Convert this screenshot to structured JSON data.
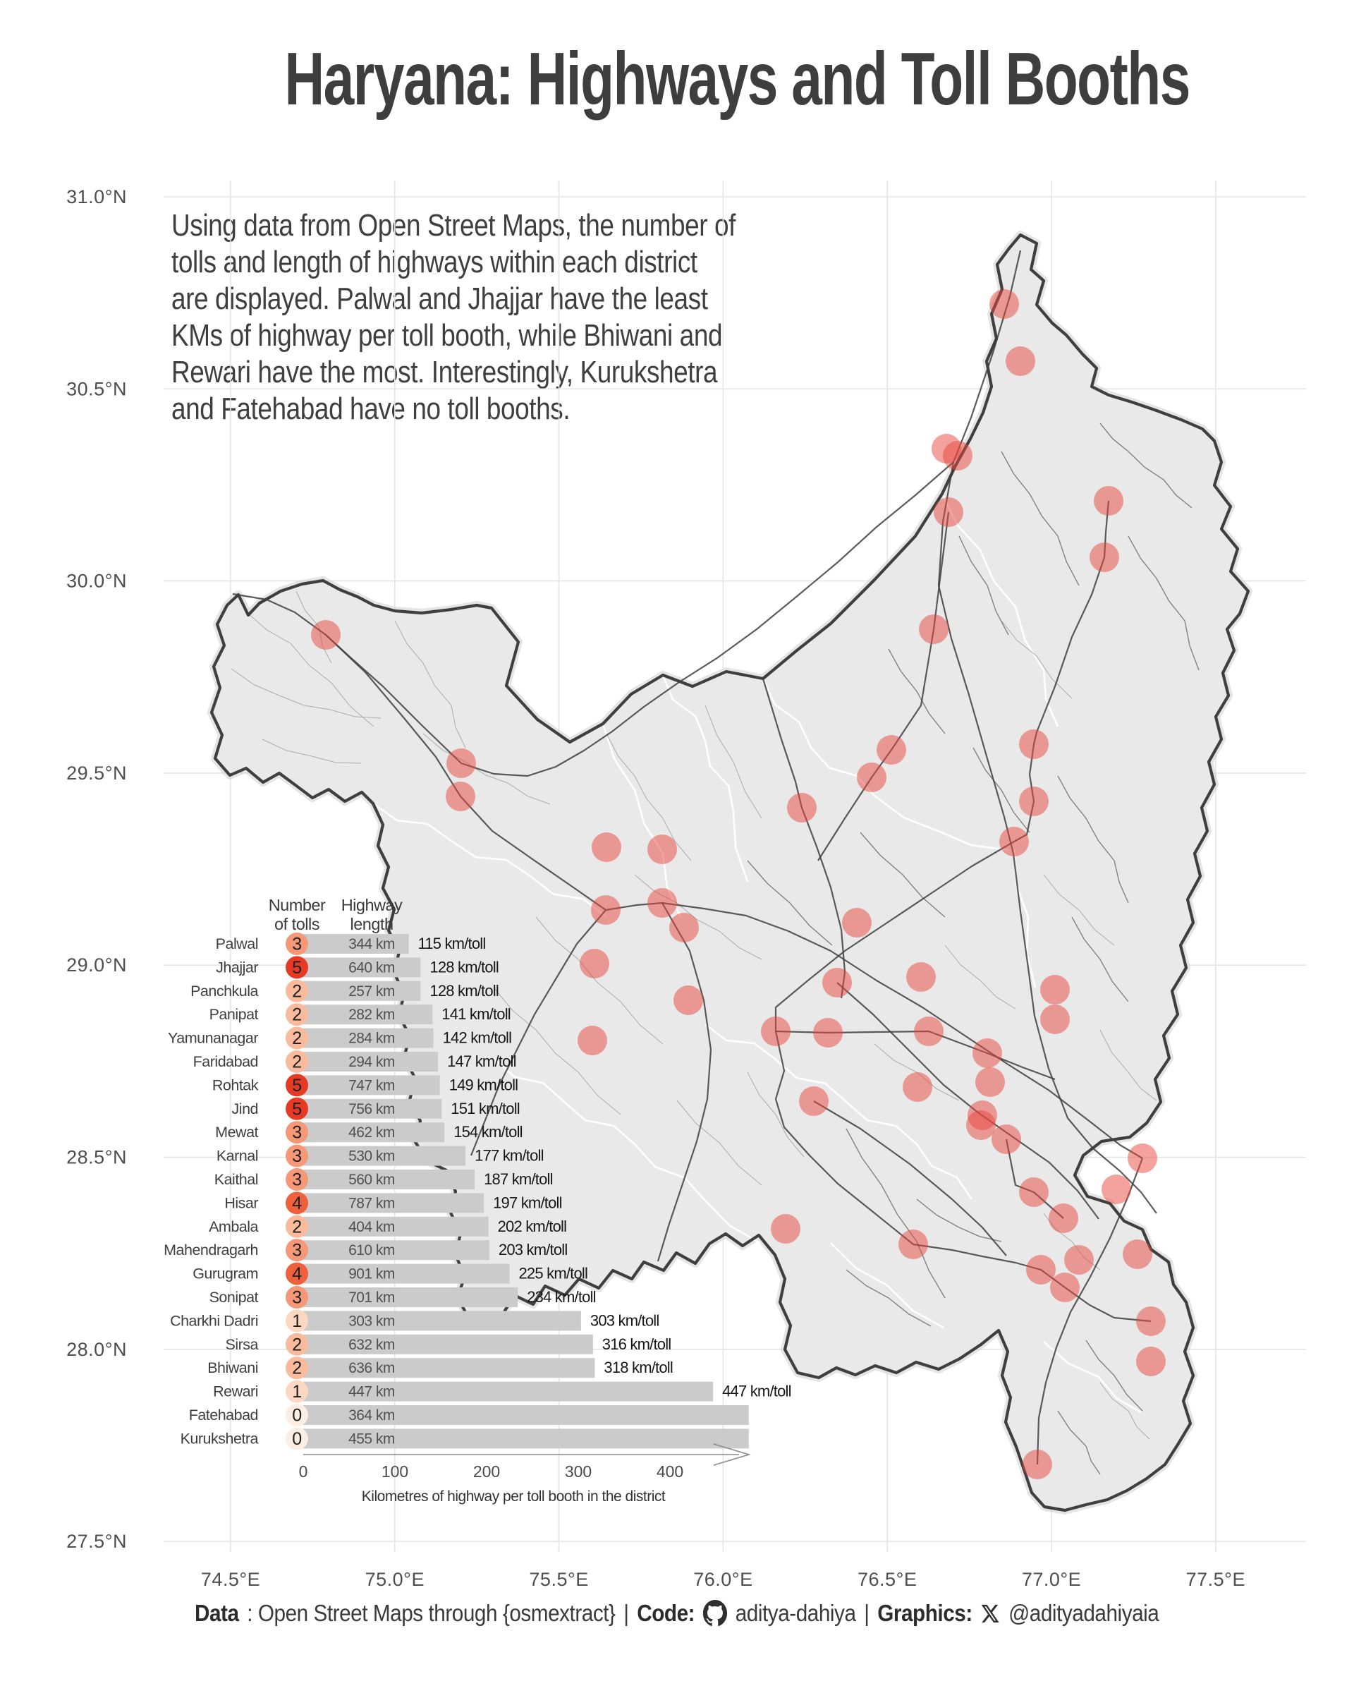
{
  "header": {
    "title": "Haryana: Highways and Toll Booths"
  },
  "description": {
    "lines": [
      "Using data from Open Street Maps, the number of",
      "tolls and length of highways within each district",
      "are displayed. Palwal and Jhajjar have the least",
      "KMs of highway per toll booth, while Bhiwani and",
      "Rewari have the most. Interestingly, Kurukshetra",
      "and Fatehabad have no toll booths."
    ]
  },
  "axes": {
    "lat_labels": [
      "31.0°N",
      "30.5°N",
      "30.0°N",
      "29.5°N",
      "29.0°N",
      "28.5°N",
      "28.0°N",
      "27.5°N"
    ],
    "lon_labels": [
      "74.5°E",
      "75.0°E",
      "75.5°E",
      "76.0°E",
      "76.5°E",
      "77.0°E",
      "77.5°E"
    ]
  },
  "chart_data": {
    "type": "bar",
    "col_headers": {
      "tolls": [
        "Number",
        "of tolls"
      ],
      "length": [
        "Highway",
        "length"
      ]
    },
    "xlabel": "Kilometres of highway per toll booth in the district",
    "x_ticks": [
      0,
      100,
      200,
      300,
      400
    ],
    "bar_unit": "km",
    "value_unit": "km/toll",
    "bar_color": "#cbcbcb",
    "toll_colors": {
      "0": "#fdeee4",
      "1": "#fbd8c2",
      "2": "#f9bb9b",
      "3": "#f59878",
      "4": "#ef603c",
      "5": "#e73a24"
    },
    "rows": [
      {
        "district": "Palwal",
        "tolls": 3,
        "highway_km": 344,
        "km_per_toll": 115
      },
      {
        "district": "Jhajjar",
        "tolls": 5,
        "highway_km": 640,
        "km_per_toll": 128
      },
      {
        "district": "Panchkula",
        "tolls": 2,
        "highway_km": 257,
        "km_per_toll": 128
      },
      {
        "district": "Panipat",
        "tolls": 2,
        "highway_km": 282,
        "km_per_toll": 141
      },
      {
        "district": "Yamunanagar",
        "tolls": 2,
        "highway_km": 284,
        "km_per_toll": 142
      },
      {
        "district": "Faridabad",
        "tolls": 2,
        "highway_km": 294,
        "km_per_toll": 147
      },
      {
        "district": "Rohtak",
        "tolls": 5,
        "highway_km": 747,
        "km_per_toll": 149
      },
      {
        "district": "Jind",
        "tolls": 5,
        "highway_km": 756,
        "km_per_toll": 151
      },
      {
        "district": "Mewat",
        "tolls": 3,
        "highway_km": 462,
        "km_per_toll": 154
      },
      {
        "district": "Karnal",
        "tolls": 3,
        "highway_km": 530,
        "km_per_toll": 177
      },
      {
        "district": "Kaithal",
        "tolls": 3,
        "highway_km": 560,
        "km_per_toll": 187
      },
      {
        "district": "Hisar",
        "tolls": 4,
        "highway_km": 787,
        "km_per_toll": 197
      },
      {
        "district": "Ambala",
        "tolls": 2,
        "highway_km": 404,
        "km_per_toll": 202
      },
      {
        "district": "Mahendragarh",
        "tolls": 3,
        "highway_km": 610,
        "km_per_toll": 203
      },
      {
        "district": "Gurugram",
        "tolls": 4,
        "highway_km": 901,
        "km_per_toll": 225
      },
      {
        "district": "Sonipat",
        "tolls": 3,
        "highway_km": 701,
        "km_per_toll": 234
      },
      {
        "district": "Charkhi Dadri",
        "tolls": 1,
        "highway_km": 303,
        "km_per_toll": 303
      },
      {
        "district": "Sirsa",
        "tolls": 2,
        "highway_km": 632,
        "km_per_toll": 316
      },
      {
        "district": "Bhiwani",
        "tolls": 2,
        "highway_km": 636,
        "km_per_toll": 318
      },
      {
        "district": "Rewari",
        "tolls": 1,
        "highway_km": 447,
        "km_per_toll": 447
      },
      {
        "district": "Fatehabad",
        "tolls": 0,
        "highway_km": 364,
        "km_per_toll": null
      },
      {
        "district": "Kurukshetra",
        "tolls": 0,
        "highway_km": 455,
        "km_per_toll": null
      }
    ]
  },
  "map": {
    "region": "Haryana",
    "toll_dot_color": "#e8453c",
    "toll_booths": [
      [
        1424,
        431
      ],
      [
        1447,
        512
      ],
      [
        1342,
        636
      ],
      [
        1358,
        646
      ],
      [
        1345,
        726
      ],
      [
        1572,
        710
      ],
      [
        1566,
        790
      ],
      [
        462,
        900
      ],
      [
        1324,
        892
      ],
      [
        1264,
        1063
      ],
      [
        1236,
        1102
      ],
      [
        1466,
        1055
      ],
      [
        1137,
        1145
      ],
      [
        1466,
        1136
      ],
      [
        654,
        1082
      ],
      [
        653,
        1129
      ],
      [
        860,
        1201
      ],
      [
        939,
        1204
      ],
      [
        1438,
        1193
      ],
      [
        970,
        1315
      ],
      [
        1215,
        1308
      ],
      [
        843,
        1366
      ],
      [
        1187,
        1393
      ],
      [
        1306,
        1385
      ],
      [
        859,
        1290
      ],
      [
        939,
        1280
      ],
      [
        1100,
        1462
      ],
      [
        1174,
        1464
      ],
      [
        1317,
        1462
      ],
      [
        1496,
        1403
      ],
      [
        1496,
        1445
      ],
      [
        1400,
        1493
      ],
      [
        1301,
        1541
      ],
      [
        1404,
        1534
      ],
      [
        1391,
        1595
      ],
      [
        976,
        1418
      ],
      [
        840,
        1475
      ],
      [
        1154,
        1561
      ],
      [
        1393,
        1581
      ],
      [
        1427,
        1615
      ],
      [
        1620,
        1642
      ],
      [
        1583,
        1686
      ],
      [
        1466,
        1690
      ],
      [
        1508,
        1727
      ],
      [
        1114,
        1742
      ],
      [
        1295,
        1764
      ],
      [
        1530,
        1786
      ],
      [
        1613,
        1778
      ],
      [
        1476,
        1800
      ],
      [
        1510,
        1825
      ],
      [
        1632,
        1873
      ],
      [
        1632,
        1930
      ],
      [
        1471,
        2076
      ]
    ]
  },
  "footer": {
    "data_label": "Data",
    "data_rest": ": Open Street Maps through {osmextract}",
    "divider": "|",
    "code_label": "Code:",
    "code_value": "aditya-dahiya",
    "graphics_label": "Graphics:",
    "graphics_value": "@adityadahiyaia"
  }
}
